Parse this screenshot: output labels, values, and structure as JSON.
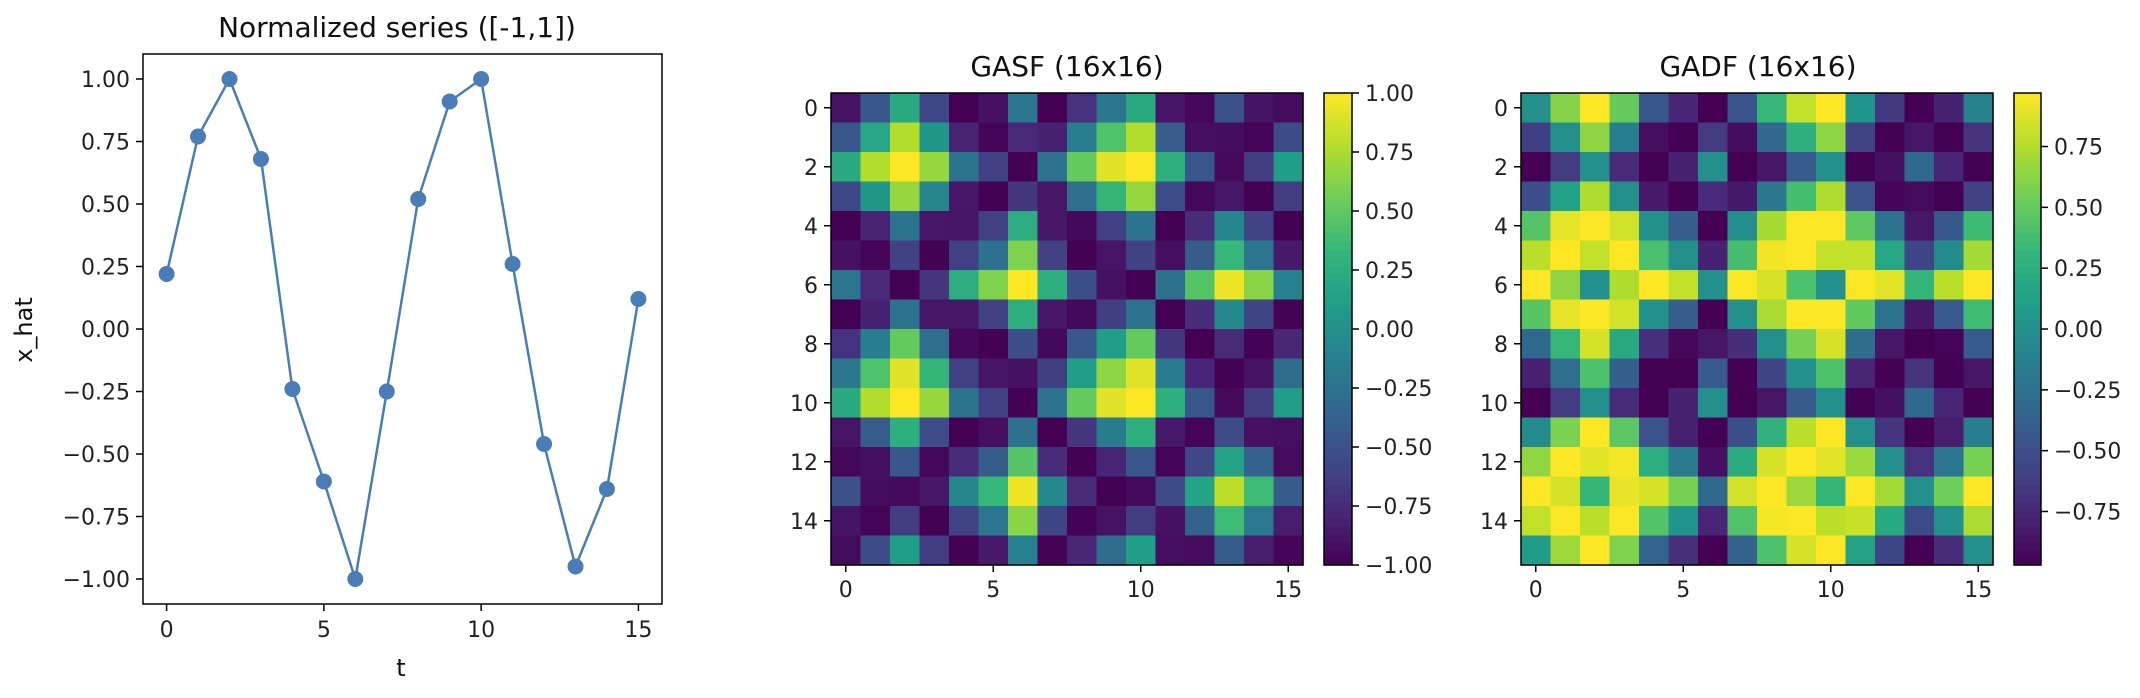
{
  "chart_data": [
    {
      "type": "line",
      "title": "Normalized series ([-1,1])",
      "xlabel": "t",
      "ylabel": "x_hat",
      "xlim": [
        -0.75,
        15.75
      ],
      "ylim": [
        -1.1,
        1.1
      ],
      "x_ticks": [
        "0",
        "5",
        "10",
        "15"
      ],
      "y_ticks": [
        "−1.00",
        "−0.75",
        "−0.50",
        "−0.25",
        "0.00",
        "0.25",
        "0.50",
        "0.75",
        "1.00"
      ],
      "line_color": "#4a7db8",
      "x": [
        0,
        1,
        2,
        3,
        4,
        5,
        6,
        7,
        8,
        9,
        10,
        11,
        12,
        13,
        14,
        15
      ],
      "y": [
        0.22,
        0.77,
        1.0,
        0.68,
        -0.24,
        -0.61,
        -1.0,
        -0.25,
        0.52,
        0.91,
        1.0,
        0.26,
        -0.46,
        -0.95,
        -0.64,
        0.12
      ]
    },
    {
      "type": "heatmap",
      "title": "GASF (16x16)",
      "x_ticks": [
        "0",
        "5",
        "10",
        "15"
      ],
      "y_ticks": [
        "0",
        "2",
        "4",
        "6",
        "8",
        "10",
        "12",
        "14"
      ],
      "colorbar_ticks": [
        "1.00",
        "0.75",
        "0.50",
        "0.25",
        "0.00",
        "−0.25",
        "−0.50",
        "−0.75",
        "−1.00"
      ],
      "vmin": -1,
      "vmax": 1,
      "colormap": "viridis",
      "series": [
        0.22,
        0.77,
        1.0,
        0.68,
        -0.24,
        -0.61,
        -1.0,
        -0.25,
        0.52,
        0.91,
        1.0,
        0.26,
        -0.46,
        -0.95,
        -0.64,
        0.12
      ]
    },
    {
      "type": "heatmap",
      "title": "GADF (16x16)",
      "x_ticks": [
        "0",
        "5",
        "10",
        "15"
      ],
      "y_ticks": [
        "0",
        "2",
        "4",
        "6",
        "8",
        "10",
        "12",
        "14"
      ],
      "colorbar_ticks": [
        "0.75",
        "0.50",
        "0.25",
        "0.00",
        "−0.25",
        "−0.50",
        "−0.75"
      ],
      "vmin": -0.97,
      "vmax": 0.97,
      "colormap": "viridis",
      "series": [
        0.22,
        0.77,
        1.0,
        0.68,
        -0.24,
        -0.61,
        -1.0,
        -0.25,
        0.52,
        0.91,
        1.0,
        0.26,
        -0.46,
        -0.95,
        -0.64,
        0.12
      ]
    }
  ]
}
